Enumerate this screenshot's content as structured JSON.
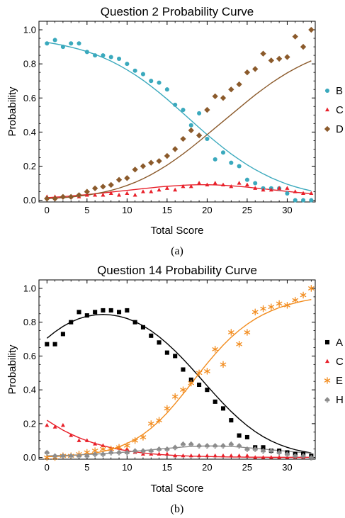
{
  "chart_data": [
    {
      "type": "scatter",
      "title": "Question 2 Probability Curve",
      "xlabel": "Total Score",
      "ylabel": "Probability",
      "caption": "(a)",
      "xlim": [
        -1,
        33.5
      ],
      "ylim": [
        -0.01,
        1.05
      ],
      "xticks": [
        0,
        5,
        10,
        15,
        20,
        25,
        30
      ],
      "yticks": [
        0.0,
        0.2,
        0.4,
        0.6,
        0.8,
        1.0
      ],
      "ytick_labels": [
        "0.0",
        "0.2",
        "0.4",
        "0.6",
        "0.8",
        "1.0"
      ],
      "legend_position": "right",
      "series": [
        {
          "name": "B",
          "marker": "circle",
          "color": "#3aa9bd",
          "x": [
            0,
            1,
            2,
            3,
            4,
            5,
            6,
            7,
            8,
            9,
            10,
            11,
            12,
            13,
            14,
            15,
            16,
            17,
            18,
            19,
            20,
            21,
            22,
            23,
            24,
            25,
            26,
            27,
            28,
            29,
            30,
            31,
            32,
            33
          ],
          "values": [
            0.92,
            0.94,
            0.9,
            0.92,
            0.92,
            0.87,
            0.85,
            0.85,
            0.84,
            0.83,
            0.8,
            0.76,
            0.74,
            0.7,
            0.69,
            0.65,
            0.56,
            0.53,
            0.44,
            0.51,
            0.36,
            0.24,
            0.28,
            0.22,
            0.2,
            0.12,
            0.1,
            0.07,
            0.07,
            0.07,
            0.04,
            0.0,
            0.0,
            0.0
          ],
          "fit": [
            0.926,
            0.918,
            0.909,
            0.898,
            0.886,
            0.872,
            0.856,
            0.837,
            0.816,
            0.792,
            0.765,
            0.736,
            0.704,
            0.669,
            0.632,
            0.593,
            0.552,
            0.51,
            0.468,
            0.426,
            0.385,
            0.346,
            0.308,
            0.272,
            0.239,
            0.208,
            0.18,
            0.155,
            0.132,
            0.112,
            0.094,
            0.079,
            0.066,
            0.055
          ]
        },
        {
          "name": "C",
          "marker": "triangle",
          "color": "#e8202a",
          "x": [
            0,
            1,
            2,
            3,
            4,
            5,
            6,
            7,
            8,
            9,
            10,
            11,
            12,
            13,
            14,
            15,
            16,
            17,
            18,
            19,
            20,
            21,
            22,
            23,
            24,
            25,
            26,
            27,
            28,
            29,
            30,
            31,
            32,
            33
          ],
          "values": [
            0.02,
            0.02,
            0.02,
            0.02,
            0.02,
            0.03,
            0.03,
            0.03,
            0.04,
            0.03,
            0.04,
            0.03,
            0.05,
            0.05,
            0.06,
            0.07,
            0.06,
            0.08,
            0.08,
            0.1,
            0.09,
            0.1,
            0.09,
            0.08,
            0.1,
            0.09,
            0.07,
            0.06,
            0.06,
            0.07,
            0.07,
            0.05,
            0.04,
            0.04
          ],
          "fit": [
            0.015,
            0.018,
            0.021,
            0.025,
            0.029,
            0.033,
            0.038,
            0.043,
            0.048,
            0.053,
            0.058,
            0.063,
            0.068,
            0.073,
            0.078,
            0.082,
            0.085,
            0.088,
            0.09,
            0.091,
            0.091,
            0.09,
            0.088,
            0.085,
            0.081,
            0.077,
            0.072,
            0.067,
            0.062,
            0.057,
            0.052,
            0.047,
            0.043,
            0.038
          ]
        },
        {
          "name": "D",
          "marker": "diamond",
          "color": "#8b5a2b",
          "x": [
            0,
            1,
            2,
            3,
            4,
            5,
            6,
            7,
            8,
            9,
            10,
            11,
            12,
            13,
            14,
            15,
            16,
            17,
            18,
            19,
            20,
            21,
            22,
            23,
            24,
            25,
            26,
            27,
            28,
            29,
            30,
            31,
            32,
            33
          ],
          "values": [
            0.01,
            0.01,
            0.02,
            0.02,
            0.03,
            0.05,
            0.07,
            0.08,
            0.09,
            0.12,
            0.13,
            0.18,
            0.2,
            0.22,
            0.23,
            0.26,
            0.3,
            0.36,
            0.41,
            0.38,
            0.53,
            0.61,
            0.6,
            0.65,
            0.68,
            0.75,
            0.77,
            0.86,
            0.82,
            0.83,
            0.84,
            0.96,
            0.9,
            1.0
          ],
          "fit": [
            0.01,
            0.012,
            0.015,
            0.019,
            0.024,
            0.03,
            0.038,
            0.047,
            0.058,
            0.071,
            0.087,
            0.105,
            0.126,
            0.15,
            0.177,
            0.206,
            0.238,
            0.272,
            0.308,
            0.346,
            0.385,
            0.424,
            0.463,
            0.502,
            0.541,
            0.58,
            0.618,
            0.653,
            0.687,
            0.718,
            0.747,
            0.773,
            0.797,
            0.818
          ]
        }
      ]
    },
    {
      "type": "scatter",
      "title": "Question 14 Probability Curve",
      "xlabel": "Total Score",
      "ylabel": "Probability",
      "caption": "(b)",
      "xlim": [
        -1,
        33.5
      ],
      "ylim": [
        -0.01,
        1.05
      ],
      "xticks": [
        0,
        5,
        10,
        15,
        20,
        25,
        30
      ],
      "yticks": [
        0.0,
        0.2,
        0.4,
        0.6,
        0.8,
        1.0
      ],
      "ytick_labels": [
        "0.0",
        "0.2",
        "0.4",
        "0.6",
        "0.8",
        "1.0"
      ],
      "legend_position": "right",
      "series": [
        {
          "name": "A",
          "marker": "square",
          "color": "#000000",
          "x": [
            0,
            1,
            2,
            3,
            4,
            5,
            6,
            7,
            8,
            9,
            10,
            11,
            12,
            13,
            14,
            15,
            16,
            17,
            18,
            19,
            20,
            21,
            22,
            23,
            24,
            25,
            26,
            27,
            28,
            29,
            30,
            31,
            32,
            33
          ],
          "values": [
            0.67,
            0.67,
            0.73,
            0.8,
            0.86,
            0.84,
            0.86,
            0.87,
            0.87,
            0.86,
            0.87,
            0.8,
            0.77,
            0.72,
            0.68,
            0.62,
            0.6,
            0.52,
            0.46,
            0.43,
            0.4,
            0.33,
            0.29,
            0.22,
            0.13,
            0.12,
            0.06,
            0.06,
            0.04,
            0.04,
            0.03,
            0.02,
            0.02,
            0.01
          ],
          "fit": [
            0.705,
            0.743,
            0.775,
            0.801,
            0.821,
            0.835,
            0.843,
            0.846,
            0.843,
            0.835,
            0.822,
            0.803,
            0.779,
            0.749,
            0.714,
            0.674,
            0.63,
            0.582,
            0.531,
            0.478,
            0.424,
            0.371,
            0.32,
            0.272,
            0.228,
            0.188,
            0.153,
            0.123,
            0.098,
            0.077,
            0.06,
            0.046,
            0.036,
            0.027
          ]
        },
        {
          "name": "C",
          "marker": "triangle",
          "color": "#e8202a",
          "x": [
            0,
            1,
            2,
            3,
            4,
            5,
            6,
            7,
            8,
            9,
            10,
            11,
            12,
            13,
            14,
            15,
            16,
            17,
            18,
            19,
            20,
            21,
            22,
            23,
            24,
            25,
            26,
            27,
            28,
            29,
            30,
            31,
            32,
            33
          ],
          "values": [
            0.19,
            0.18,
            0.19,
            0.13,
            0.1,
            0.1,
            0.08,
            0.07,
            0.05,
            0.06,
            0.05,
            0.03,
            0.02,
            0.02,
            0.02,
            0.02,
            0.01,
            0.01,
            0.01,
            0.01,
            0.01,
            0.01,
            0.01,
            0.01,
            0.01,
            0.01,
            0.0,
            0.0,
            0.0,
            0.0,
            0.0,
            0.0,
            0.0,
            0.0
          ],
          "fit": [
            0.22,
            0.19,
            0.162,
            0.138,
            0.117,
            0.099,
            0.083,
            0.07,
            0.058,
            0.048,
            0.04,
            0.033,
            0.027,
            0.022,
            0.018,
            0.015,
            0.012,
            0.01,
            0.008,
            0.007,
            0.006,
            0.005,
            0.004,
            0.003,
            0.003,
            0.002,
            0.002,
            0.002,
            0.001,
            0.001,
            0.001,
            0.001,
            0.001,
            0.001
          ]
        },
        {
          "name": "E",
          "marker": "asterisk",
          "color": "#f28c1e",
          "x": [
            0,
            1,
            2,
            3,
            4,
            5,
            6,
            7,
            8,
            9,
            10,
            11,
            12,
            13,
            14,
            15,
            16,
            17,
            18,
            19,
            20,
            21,
            22,
            23,
            24,
            25,
            26,
            27,
            28,
            29,
            30,
            31,
            32,
            33
          ],
          "values": [
            0.0,
            0.0,
            0.01,
            0.01,
            0.02,
            0.03,
            0.04,
            0.05,
            0.05,
            0.06,
            0.07,
            0.1,
            0.12,
            0.2,
            0.22,
            0.29,
            0.36,
            0.4,
            0.44,
            0.5,
            0.51,
            0.64,
            0.55,
            0.74,
            0.67,
            0.74,
            0.86,
            0.88,
            0.89,
            0.91,
            0.9,
            0.93,
            0.96,
            1.0
          ],
          "fit": [
            0.005,
            0.006,
            0.008,
            0.011,
            0.015,
            0.02,
            0.027,
            0.036,
            0.048,
            0.063,
            0.083,
            0.107,
            0.137,
            0.173,
            0.215,
            0.264,
            0.318,
            0.376,
            0.436,
            0.497,
            0.556,
            0.612,
            0.664,
            0.711,
            0.752,
            0.788,
            0.819,
            0.845,
            0.867,
            0.886,
            0.901,
            0.914,
            0.925,
            0.934
          ]
        },
        {
          "name": "H",
          "marker": "spade",
          "color": "#8c8c8c",
          "x": [
            0,
            1,
            2,
            3,
            4,
            5,
            6,
            7,
            8,
            9,
            10,
            11,
            12,
            13,
            14,
            15,
            16,
            17,
            18,
            19,
            20,
            21,
            22,
            23,
            24,
            25,
            26,
            27,
            28,
            29,
            30,
            31,
            32,
            33
          ],
          "values": [
            0.03,
            0.01,
            0.01,
            0.01,
            0.01,
            0.01,
            0.02,
            0.02,
            0.03,
            0.03,
            0.03,
            0.04,
            0.04,
            0.04,
            0.05,
            0.05,
            0.06,
            0.08,
            0.08,
            0.07,
            0.07,
            0.07,
            0.07,
            0.08,
            0.07,
            0.05,
            0.05,
            0.04,
            0.04,
            0.03,
            0.02,
            0.01,
            0.01,
            0.0
          ],
          "fit": [
            0.01,
            0.011,
            0.012,
            0.014,
            0.016,
            0.018,
            0.02,
            0.023,
            0.026,
            0.029,
            0.033,
            0.037,
            0.041,
            0.045,
            0.05,
            0.054,
            0.058,
            0.062,
            0.065,
            0.067,
            0.068,
            0.068,
            0.067,
            0.065,
            0.062,
            0.058,
            0.054,
            0.05,
            0.045,
            0.041,
            0.037,
            0.033,
            0.029,
            0.026
          ]
        }
      ]
    }
  ]
}
